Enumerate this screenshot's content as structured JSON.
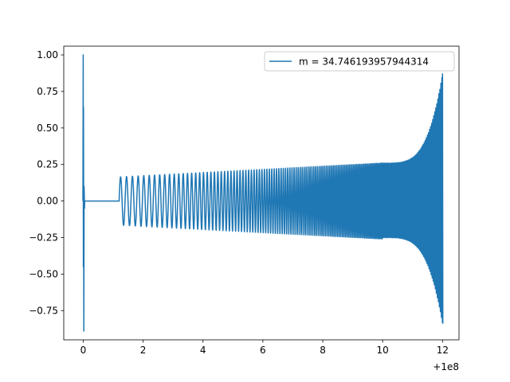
{
  "chart_data": {
    "type": "line",
    "title": "",
    "xlabel": "",
    "ylabel": "",
    "x_offset_label": "+1e8",
    "xlim": [
      -0.65,
      12.55
    ],
    "ylim": [
      -0.95,
      1.06
    ],
    "x_ticks": [
      0,
      2,
      4,
      6,
      8,
      10,
      12
    ],
    "x_tick_labels": [
      "0",
      "2",
      "4",
      "6",
      "8",
      "10",
      "12"
    ],
    "y_ticks": [
      -0.75,
      -0.5,
      -0.25,
      0.0,
      0.25,
      0.5,
      0.75,
      1.0
    ],
    "y_tick_labels": [
      "−0.75",
      "−0.50",
      "−0.25",
      "0.00",
      "0.25",
      "0.50",
      "0.75",
      "1.00"
    ],
    "grid": false,
    "legend_position": "upper right",
    "colors": {
      "series": "#1f77b4",
      "axes": "#000000",
      "legend_border": "#cccccc"
    },
    "series": [
      {
        "name": "m = 34.746193957944314",
        "description_points": {
          "initial_spike_x": 0.0,
          "initial_spike_max": 1.0,
          "initial_spike_min": -0.89,
          "flat_start": 0.05,
          "flat_end": 1.2,
          "flat_value": 0.0,
          "chirp_start": 1.2,
          "chirp_end": 12.0,
          "chirp_start_amplitude": 0.165,
          "chirp_amp_at_10": 0.26,
          "chirp_end_max": 0.87,
          "chirp_end_min": -0.84
        }
      }
    ]
  }
}
